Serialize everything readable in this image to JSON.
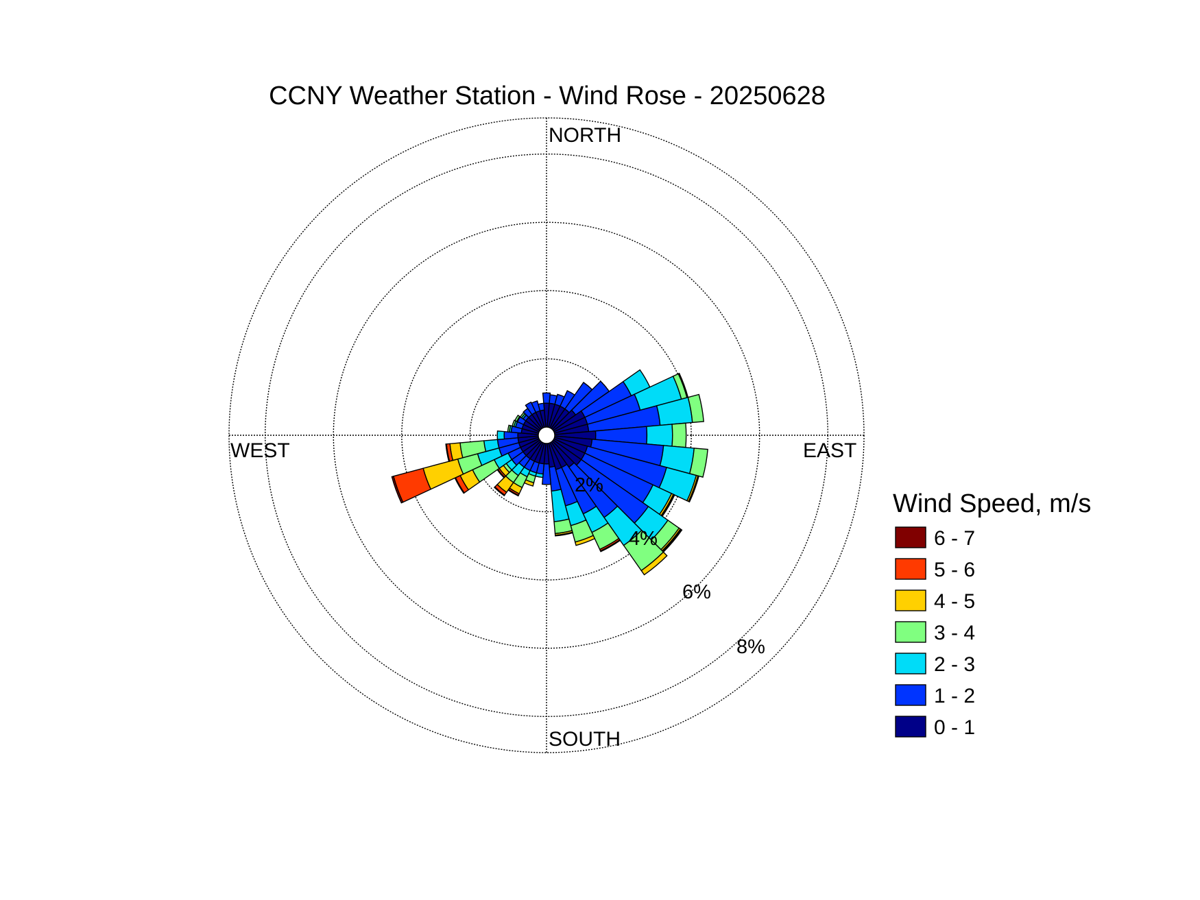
{
  "chart_data": {
    "type": "wind_rose",
    "title": "CCNY Weather Station - Wind Rose - 20250628",
    "directions": {
      "north": "NORTH",
      "east": "EAST",
      "south": "SOUTH",
      "west": "WEST"
    },
    "ring_values": [
      2,
      4,
      6,
      8
    ],
    "ring_labels": [
      "2%",
      "4%",
      "6%",
      "8%"
    ],
    "legend_title": "Wind Speed, m/s",
    "bins": [
      {
        "label": "6 - 7",
        "color": "#800000"
      },
      {
        "label": "5 - 6",
        "color": "#ff3a00"
      },
      {
        "label": "4 - 5",
        "color": "#ffd000"
      },
      {
        "label": "3 - 4",
        "color": "#80ff80"
      },
      {
        "label": "2 - 3",
        "color": "#00dcf8"
      },
      {
        "label": "1 - 2",
        "color": "#0034ff"
      },
      {
        "label": "0 - 1",
        "color": "#000088"
      }
    ],
    "sector_width_deg": 10,
    "sectors_note": "direction (deg clockwise from north) and cumulative frequency (%) at top of each speed bin, ordered 0-1, 1-2, 2-3, 3-4, 4-5, 5-6, 6-7",
    "sectors": [
      {
        "dir": 0,
        "cum": [
          0.7,
          1.0,
          1.0,
          1.0,
          1.0,
          1.0,
          1.0
        ]
      },
      {
        "dir": 10,
        "cum": [
          0.7,
          0.95,
          0.95,
          0.95,
          0.95,
          0.95,
          0.95
        ]
      },
      {
        "dir": 20,
        "cum": [
          0.7,
          1.0,
          1.0,
          1.0,
          1.0,
          1.0,
          1.0
        ]
      },
      {
        "dir": 30,
        "cum": [
          0.7,
          1.2,
          1.2,
          1.2,
          1.2,
          1.2,
          1.2
        ]
      },
      {
        "dir": 40,
        "cum": [
          0.7,
          1.65,
          1.65,
          1.65,
          1.65,
          1.65,
          1.65
        ]
      },
      {
        "dir": 50,
        "cum": [
          0.8,
          2.0,
          2.0,
          2.0,
          2.0,
          2.0,
          2.0
        ]
      },
      {
        "dir": 60,
        "cum": [
          1.0,
          2.5,
          3.1,
          3.1,
          3.1,
          3.1,
          3.1
        ]
      },
      {
        "dir": 70,
        "cum": [
          1.0,
          2.6,
          3.85,
          4.02,
          4.05,
          4.05,
          4.05
        ]
      },
      {
        "dir": 80,
        "cum": [
          1.0,
          3.1,
          4.05,
          4.38,
          4.38,
          4.38,
          4.38
        ]
      },
      {
        "dir": 90,
        "cum": [
          1.2,
          2.7,
          3.45,
          3.85,
          3.85,
          3.85,
          3.85
        ]
      },
      {
        "dir": 100,
        "cum": [
          1.1,
          3.2,
          4.1,
          4.5,
          4.5,
          4.5,
          4.5
        ]
      },
      {
        "dir": 110,
        "cum": [
          1.0,
          3.4,
          4.3,
          4.3,
          4.35,
          4.38,
          4.38
        ]
      },
      {
        "dir": 120,
        "cum": [
          1.0,
          3.2,
          3.8,
          3.8,
          3.86,
          3.89,
          3.9
        ]
      },
      {
        "dir": 130,
        "cum": [
          1.0,
          3.4,
          4.1,
          4.5,
          4.55,
          4.58,
          4.6
        ]
      },
      {
        "dir": 140,
        "cum": [
          0.9,
          2.7,
          3.7,
          4.6,
          4.75,
          4.75,
          4.75
        ]
      },
      {
        "dir": 150,
        "cum": [
          0.8,
          2.3,
          2.9,
          3.45,
          3.45,
          3.5,
          3.52
        ]
      },
      {
        "dir": 160,
        "cum": [
          0.8,
          1.9,
          2.5,
          3.0,
          3.1,
          3.1,
          3.1
        ]
      },
      {
        "dir": 170,
        "cum": [
          0.7,
          1.4,
          2.3,
          2.65,
          2.7,
          2.72,
          2.72
        ]
      },
      {
        "dir": 180,
        "cum": [
          0.6,
          1.2,
          1.2,
          1.2,
          1.2,
          1.2,
          1.2
        ]
      },
      {
        "dir": 190,
        "cum": [
          0.6,
          0.9,
          1.0,
          1.0,
          1.0,
          1.0,
          1.0
        ]
      },
      {
        "dir": 200,
        "cum": [
          0.6,
          0.9,
          1.0,
          1.2,
          1.3,
          1.3,
          1.3
        ]
      },
      {
        "dir": 210,
        "cum": [
          0.6,
          0.9,
          1.1,
          1.45,
          1.65,
          1.7,
          1.72
        ]
      },
      {
        "dir": 220,
        "cum": [
          0.6,
          0.9,
          1.2,
          1.45,
          1.8,
          1.9,
          1.92
        ]
      },
      {
        "dir": 230,
        "cum": [
          0.6,
          1.0,
          1.2,
          1.3,
          1.45,
          1.5,
          1.52
        ]
      },
      {
        "dir": 240,
        "cum": [
          0.6,
          1.0,
          1.45,
          2.15,
          2.55,
          2.7,
          2.72
        ]
      },
      {
        "dir": 250,
        "cum": [
          0.6,
          1.2,
          1.85,
          2.45,
          3.5,
          4.4,
          4.45
        ]
      },
      {
        "dir": 260,
        "cum": [
          0.6,
          1.2,
          1.6,
          2.3,
          2.6,
          2.7,
          2.72
        ]
      },
      {
        "dir": 270,
        "cum": [
          0.6,
          1.0,
          1.2,
          1.2,
          1.2,
          1.2,
          1.2
        ]
      },
      {
        "dir": 280,
        "cum": [
          0.5,
          0.8,
          0.85,
          0.9,
          0.9,
          0.9,
          0.9
        ]
      },
      {
        "dir": 290,
        "cum": [
          0.5,
          0.7,
          0.75,
          0.8,
          0.8,
          0.8,
          0.8
        ]
      },
      {
        "dir": 300,
        "cum": [
          0.5,
          0.7,
          0.72,
          0.78,
          0.78,
          0.78,
          0.78
        ]
      },
      {
        "dir": 310,
        "cum": [
          0.5,
          0.6,
          0.65,
          0.7,
          0.7,
          0.7,
          0.7
        ]
      },
      {
        "dir": 320,
        "cum": [
          0.5,
          0.72,
          0.72,
          0.72,
          0.72,
          0.72,
          0.72
        ]
      },
      {
        "dir": 330,
        "cum": [
          0.5,
          0.83,
          0.83,
          0.83,
          0.83,
          0.83,
          0.83
        ]
      },
      {
        "dir": 340,
        "cum": [
          0.5,
          0.8,
          0.8,
          0.8,
          0.8,
          0.8,
          0.8
        ]
      },
      {
        "dir": 350,
        "cum": [
          0.5,
          0.7,
          0.7,
          0.7,
          0.7,
          0.7,
          0.7
        ]
      }
    ]
  }
}
